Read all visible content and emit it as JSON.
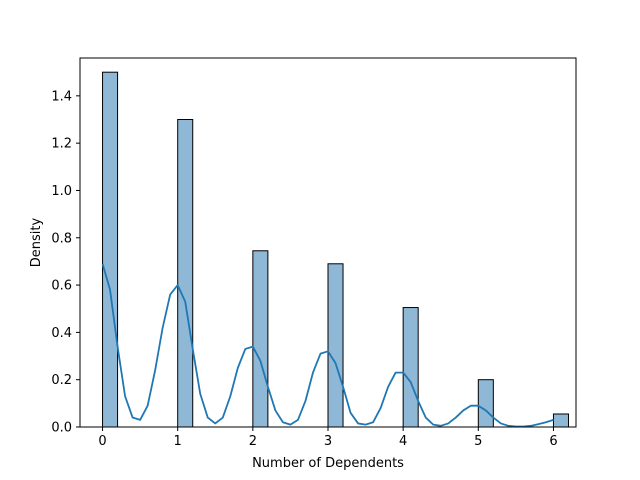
{
  "chart_data": {
    "type": "bar",
    "title": "",
    "xlabel": "Number of Dependents",
    "ylabel": "Density",
    "xlim": [
      -0.3,
      6.3
    ],
    "ylim": [
      0,
      1.56
    ],
    "xticks": [
      0,
      1,
      2,
      3,
      4,
      5,
      6
    ],
    "yticks": [
      0.0,
      0.2,
      0.4,
      0.6,
      0.8,
      1.0,
      1.2,
      1.4
    ],
    "ytick_labels": [
      "0.0",
      "0.2",
      "0.4",
      "0.6",
      "0.8",
      "1.0",
      "1.2",
      "1.4"
    ],
    "xtick_labels": [
      "0",
      "1",
      "2",
      "3",
      "4",
      "5",
      "6"
    ],
    "bin_width": 0.2,
    "bars": [
      {
        "x": 0,
        "value": 1.5
      },
      {
        "x": 1,
        "value": 1.3
      },
      {
        "x": 2,
        "value": 0.745
      },
      {
        "x": 3,
        "value": 0.69
      },
      {
        "x": 4,
        "value": 0.505
      },
      {
        "x": 5,
        "value": 0.2
      },
      {
        "x": 6,
        "value": 0.055
      }
    ],
    "kde": {
      "x": [
        0.0,
        0.1,
        0.2,
        0.3,
        0.4,
        0.5,
        0.6,
        0.7,
        0.8,
        0.9,
        1.0,
        1.1,
        1.2,
        1.3,
        1.4,
        1.5,
        1.6,
        1.7,
        1.8,
        1.9,
        2.0,
        2.1,
        2.2,
        2.3,
        2.4,
        2.5,
        2.6,
        2.7,
        2.8,
        2.9,
        3.0,
        3.1,
        3.2,
        3.3,
        3.4,
        3.5,
        3.6,
        3.7,
        3.8,
        3.9,
        4.0,
        4.1,
        4.2,
        4.3,
        4.4,
        4.5,
        4.6,
        4.7,
        4.8,
        4.9,
        5.0,
        5.1,
        5.2,
        5.3,
        5.4,
        5.5,
        5.6,
        5.7,
        5.8,
        5.9,
        6.0
      ],
      "y": [
        0.69,
        0.58,
        0.34,
        0.13,
        0.04,
        0.03,
        0.09,
        0.24,
        0.42,
        0.56,
        0.6,
        0.53,
        0.33,
        0.14,
        0.04,
        0.015,
        0.04,
        0.13,
        0.25,
        0.33,
        0.34,
        0.28,
        0.17,
        0.07,
        0.02,
        0.01,
        0.03,
        0.11,
        0.23,
        0.31,
        0.32,
        0.27,
        0.17,
        0.06,
        0.015,
        0.01,
        0.02,
        0.08,
        0.17,
        0.23,
        0.23,
        0.19,
        0.11,
        0.04,
        0.01,
        0.005,
        0.015,
        0.04,
        0.07,
        0.09,
        0.09,
        0.07,
        0.04,
        0.015,
        0.005,
        0.002,
        0.002,
        0.005,
        0.012,
        0.02,
        0.03
      ]
    },
    "colors": {
      "bar_fill": "#8fb8d7",
      "bar_edge": "#000000",
      "kde_line": "#1f77b4",
      "axes": "#000000"
    },
    "grid": false,
    "legend": "none"
  }
}
